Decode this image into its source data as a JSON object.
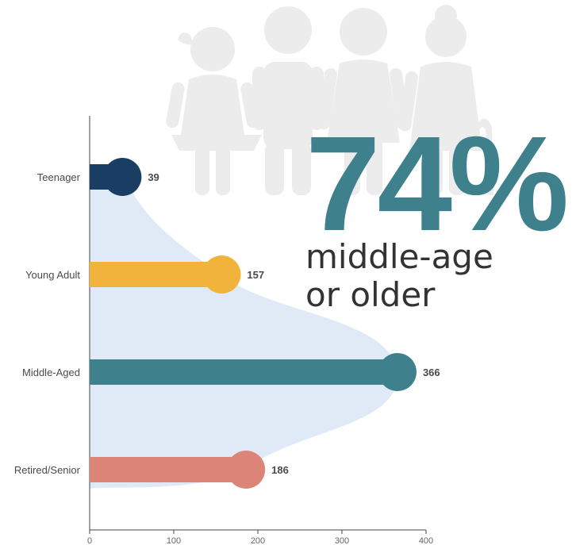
{
  "chart_data": {
    "type": "bar",
    "orientation": "horizontal",
    "categories": [
      "Teenager",
      "Young Adult",
      "Middle-Aged",
      "Retired/Senior"
    ],
    "values": [
      39,
      157,
      366,
      186
    ],
    "colors": [
      "#1a3d63",
      "#f2b33d",
      "#3e818c",
      "#dd8478"
    ],
    "xlim": [
      0,
      400
    ],
    "x_ticks": [
      "0",
      "100",
      "200",
      "300",
      "400"
    ],
    "grid": false,
    "title": "",
    "xlabel": "",
    "ylabel": ""
  },
  "callout": {
    "percent": "74%",
    "line1": "middle-age",
    "line2": "or older",
    "color": "#3e818c"
  },
  "background_art": {
    "icon": "family-silhouette-icon",
    "color": "#ececec",
    "area_color": "#dde9f5"
  }
}
